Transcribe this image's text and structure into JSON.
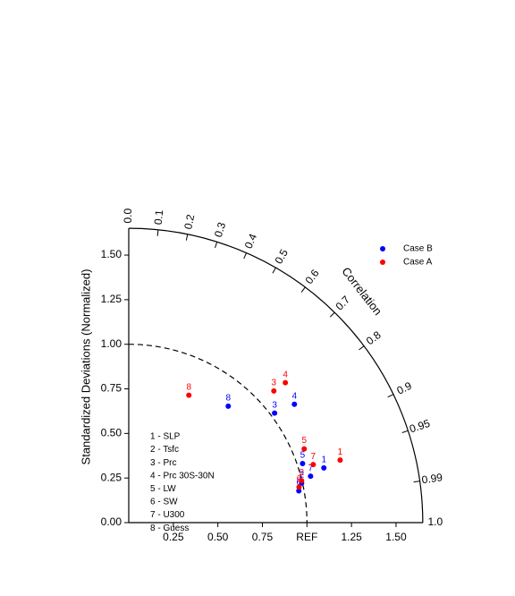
{
  "chart_data": {
    "type": "taylor",
    "ylabel": "Standardized Deviations (Normalized)",
    "corr_label": "Correlation",
    "rlim": [
      0,
      1.65
    ],
    "yticks": [
      {
        "value": 0,
        "label": "0.00"
      },
      0.25,
      {
        "value": 0.5,
        "label": "0.50"
      },
      0.75,
      {
        "value": 1,
        "label": "1.00"
      },
      1.25,
      {
        "value": 1.5,
        "label": "1.50"
      }
    ],
    "xticks": [
      0.25,
      {
        "value": 0.5,
        "label": "0.50"
      },
      0.75,
      {
        "value": 1,
        "label": "REF"
      },
      1.25,
      {
        "value": 1.5,
        "label": "1.50"
      }
    ],
    "corr_ticks": [
      {
        "value": 0,
        "label": "0.0"
      },
      0.1,
      0.2,
      0.3,
      0.4,
      0.5,
      0.6,
      0.7,
      0.8,
      0.9,
      0.95,
      0.99,
      {
        "value": 1,
        "label": "1.0"
      }
    ],
    "legend": "upper right",
    "series": [
      {
        "name": "Case B",
        "color": "#0000ff",
        "std": [
          1.137,
          0.995,
          1.023,
          1.142,
          1.03,
          0.971,
          1.053,
          0.859
        ],
        "correlation": [
          0.963,
          0.975,
          0.8,
          0.814,
          0.947,
          0.983,
          0.969,
          0.65
        ]
      },
      {
        "name": "Case A",
        "color": "#ff0000",
        "std": [
          1.237,
          0.998,
          1.099,
          1.178,
          1.068,
          0.976,
          1.085,
          0.79
        ],
        "correlation": [
          0.959,
          0.972,
          0.741,
          0.746,
          0.922,
          0.979,
          0.954,
          0.427
        ]
      }
    ],
    "point_labels": [
      "1",
      "2",
      "3",
      "4",
      "5",
      "6",
      "7",
      "8"
    ],
    "variables": [
      "1 - SLP",
      "2 - Tsfc",
      "3 - Prc",
      "4 - Prc 30S-30N",
      "5 - LW",
      "6 - SW",
      "7 - U300",
      "8 - Guess"
    ]
  }
}
